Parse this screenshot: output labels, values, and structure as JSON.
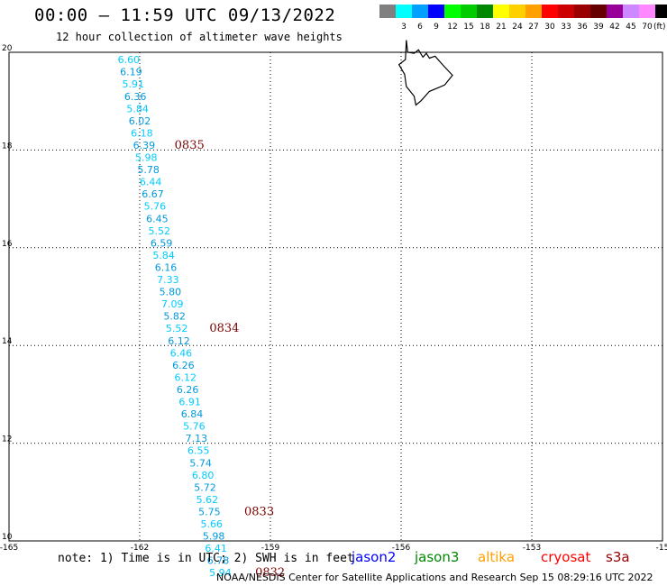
{
  "title": "00:00 – 11:59 UTC 09/13/2022",
  "subtitle": "12 hour collection of altimeter wave heights",
  "scale": {
    "unit_label": "(ft)",
    "bins": [
      {
        "label": "",
        "color": "#808080"
      },
      {
        "label": "3",
        "color": "#00ffff"
      },
      {
        "label": "6",
        "color": "#00a0ff"
      },
      {
        "label": "9",
        "color": "#0000ff"
      },
      {
        "label": "12",
        "color": "#00ff00"
      },
      {
        "label": "15",
        "color": "#00cc00"
      },
      {
        "label": "18",
        "color": "#008800"
      },
      {
        "label": "21",
        "color": "#ffff00"
      },
      {
        "label": "24",
        "color": "#ffd000"
      },
      {
        "label": "27",
        "color": "#ffa000"
      },
      {
        "label": "30",
        "color": "#ff0000"
      },
      {
        "label": "33",
        "color": "#cc0000"
      },
      {
        "label": "36",
        "color": "#990000"
      },
      {
        "label": "39",
        "color": "#660000"
      },
      {
        "label": "42",
        "color": "#990099"
      },
      {
        "label": "45",
        "color": "#cc88ff"
      },
      {
        "label": "70",
        "color": "#ff88ff"
      },
      {
        "label": "",
        "color": "#000000"
      }
    ]
  },
  "map": {
    "lon_range": [
      -165,
      -150
    ],
    "lat_range": [
      10,
      20
    ],
    "lon_ticks": [
      "-165",
      "-162",
      "-159",
      "-156",
      "-153",
      "-15"
    ],
    "lat_ticks": [
      "20",
      "18",
      "16",
      "14",
      "12",
      "10"
    ],
    "wave_color": "#00ccff",
    "wave_color_alt": "#0099dd",
    "track": [
      {
        "value": "6.60",
        "lon": -162.25,
        "lat": 19.85
      },
      {
        "value": "6.19",
        "lon": -162.2,
        "lat": 19.6
      },
      {
        "value": "5.91",
        "lon": -162.15,
        "lat": 19.35
      },
      {
        "value": "6.36",
        "lon": -162.1,
        "lat": 19.1
      },
      {
        "value": "5.84",
        "lon": -162.05,
        "lat": 18.85
      },
      {
        "value": "6.02",
        "lon": -162.0,
        "lat": 18.6
      },
      {
        "value": "6.18",
        "lon": -161.95,
        "lat": 18.35
      },
      {
        "value": "6.39",
        "lon": -161.9,
        "lat": 18.1
      },
      {
        "value": "5.98",
        "lon": -161.85,
        "lat": 17.85
      },
      {
        "value": "5.78",
        "lon": -161.8,
        "lat": 17.6
      },
      {
        "value": "6.44",
        "lon": -161.75,
        "lat": 17.35
      },
      {
        "value": "6.67",
        "lon": -161.7,
        "lat": 17.1
      },
      {
        "value": "5.76",
        "lon": -161.65,
        "lat": 16.85
      },
      {
        "value": "6.45",
        "lon": -161.6,
        "lat": 16.6
      },
      {
        "value": "5.52",
        "lon": -161.55,
        "lat": 16.35
      },
      {
        "value": "6.59",
        "lon": -161.5,
        "lat": 16.1
      },
      {
        "value": "5.84",
        "lon": -161.45,
        "lat": 15.85
      },
      {
        "value": "6.16",
        "lon": -161.4,
        "lat": 15.6
      },
      {
        "value": "7.33",
        "lon": -161.35,
        "lat": 15.35
      },
      {
        "value": "5.80",
        "lon": -161.3,
        "lat": 15.1
      },
      {
        "value": "7.09",
        "lon": -161.25,
        "lat": 14.85
      },
      {
        "value": "5.82",
        "lon": -161.2,
        "lat": 14.6
      },
      {
        "value": "5.52",
        "lon": -161.15,
        "lat": 14.35
      },
      {
        "value": "6.12",
        "lon": -161.1,
        "lat": 14.1
      },
      {
        "value": "6.46",
        "lon": -161.05,
        "lat": 13.85
      },
      {
        "value": "6.26",
        "lon": -161.0,
        "lat": 13.6
      },
      {
        "value": "6.12",
        "lon": -160.95,
        "lat": 13.35
      },
      {
        "value": "6.26",
        "lon": -160.9,
        "lat": 13.1
      },
      {
        "value": "6.91",
        "lon": -160.85,
        "lat": 12.85
      },
      {
        "value": "6.84",
        "lon": -160.8,
        "lat": 12.6
      },
      {
        "value": "5.76",
        "lon": -160.75,
        "lat": 12.35
      },
      {
        "value": "7.13",
        "lon": -160.7,
        "lat": 12.1
      },
      {
        "value": "6.55",
        "lon": -160.65,
        "lat": 11.85
      },
      {
        "value": "5.74",
        "lon": -160.6,
        "lat": 11.6
      },
      {
        "value": "6.80",
        "lon": -160.55,
        "lat": 11.35
      },
      {
        "value": "5.72",
        "lon": -160.5,
        "lat": 11.1
      },
      {
        "value": "5.62",
        "lon": -160.45,
        "lat": 10.85
      },
      {
        "value": "5.75",
        "lon": -160.4,
        "lat": 10.6
      },
      {
        "value": "5.66",
        "lon": -160.35,
        "lat": 10.35
      },
      {
        "value": "5.98",
        "lon": -160.3,
        "lat": 10.1
      },
      {
        "value": "6.41",
        "lon": -160.25,
        "lat": 9.85
      },
      {
        "value": "6.78",
        "lon": -160.2,
        "lat": 9.6
      },
      {
        "value": "5.94",
        "lon": -160.15,
        "lat": 9.35
      }
    ],
    "times": [
      {
        "value": "0835",
        "lon": -161.2,
        "lat": 18.1
      },
      {
        "value": "0834",
        "lon": -160.4,
        "lat": 14.35
      },
      {
        "value": "0833",
        "lon": -159.6,
        "lat": 10.6
      },
      {
        "value": "0832",
        "lon": -159.35,
        "lat": 9.35
      }
    ]
  },
  "note": "note: 1) Time is in UTC; 2) SWH is in feet",
  "satellites": [
    {
      "name": "jason2",
      "color": "#0000ff"
    },
    {
      "name": "jason3",
      "color": "#008800"
    },
    {
      "name": "altika",
      "color": "#ffa000"
    },
    {
      "name": "cryosat",
      "color": "#ff0000"
    },
    {
      "name": "s3a",
      "color": "#990000"
    }
  ],
  "credit": "NOAA/NESDIS Center for Satellite Applications and Research   Sep 15 08:29:16 UTC 2022"
}
